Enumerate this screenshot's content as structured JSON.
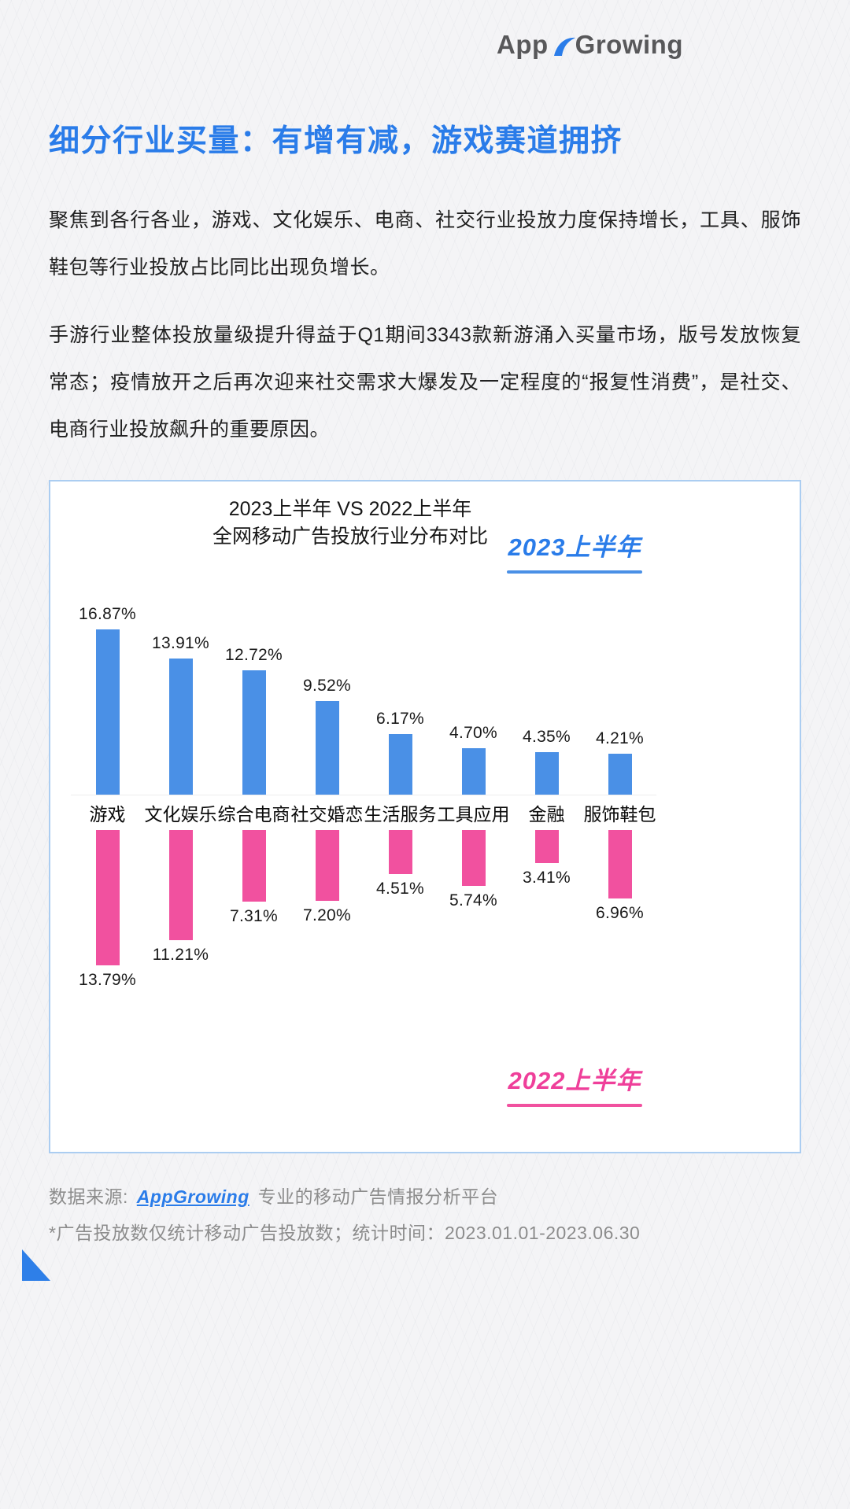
{
  "logo": {
    "text_app": "App",
    "text_growing": "Growing"
  },
  "heading": "细分行业买量：有增有减，游戏赛道拥挤",
  "paragraphs": [
    "聚焦到各行各业，游戏、文化娱乐、电商、社交行业投放力度保持增长，工具、服饰鞋包等行业投放占比同比出现负增长。",
    "手游行业整体投放量级提升得益于Q1期间3343款新游涌入买量市场，版号发放恢复常态；疫情放开之后再次迎来社交需求大爆发及一定程度的“报复性消费”，是社交、电商行业投放飙升的重要原因。"
  ],
  "chart": {
    "title_line1": "2023上半年 VS 2022上半年",
    "title_line2": "全网移动广告投放行业分布对比",
    "legend_top": "2023上半年",
    "legend_bottom": "2022上半年",
    "value_suffix": "%",
    "colors": {
      "bar_blue": "#4a90e6",
      "bar_pink": "#f1519f",
      "legend_blue": "#2a7ce9",
      "legend_pink": "#ef3f9a",
      "heading_blue": "#2a7ce9"
    }
  },
  "chart_data": {
    "type": "bar",
    "title": "2023上半年 VS 2022上半年 全网移动广告投放行业分布对比",
    "categories": [
      "游戏",
      "文化娱乐",
      "综合电商",
      "社交婚恋",
      "生活服务",
      "工具应用",
      "金融",
      "服饰鞋包"
    ],
    "series": [
      {
        "name": "2023上半年",
        "values": [
          16.87,
          13.91,
          12.72,
          9.52,
          6.17,
          4.7,
          4.35,
          4.21
        ]
      },
      {
        "name": "2022上半年",
        "values": [
          13.79,
          11.21,
          7.31,
          7.2,
          4.51,
          5.74,
          3.41,
          6.96
        ]
      }
    ],
    "value_suffix": "%",
    "layout": "diverging-vertical",
    "legend_position": "top-right / bottom-right"
  },
  "footer": {
    "source_prefix": "数据来源:",
    "source_link": "AppGrowing",
    "source_suffix": "专业的移动广告情报分析平台",
    "note": "*广告投放数仅统计移动广告投放数；统计时间：2023.01.01-2023.06.30"
  }
}
